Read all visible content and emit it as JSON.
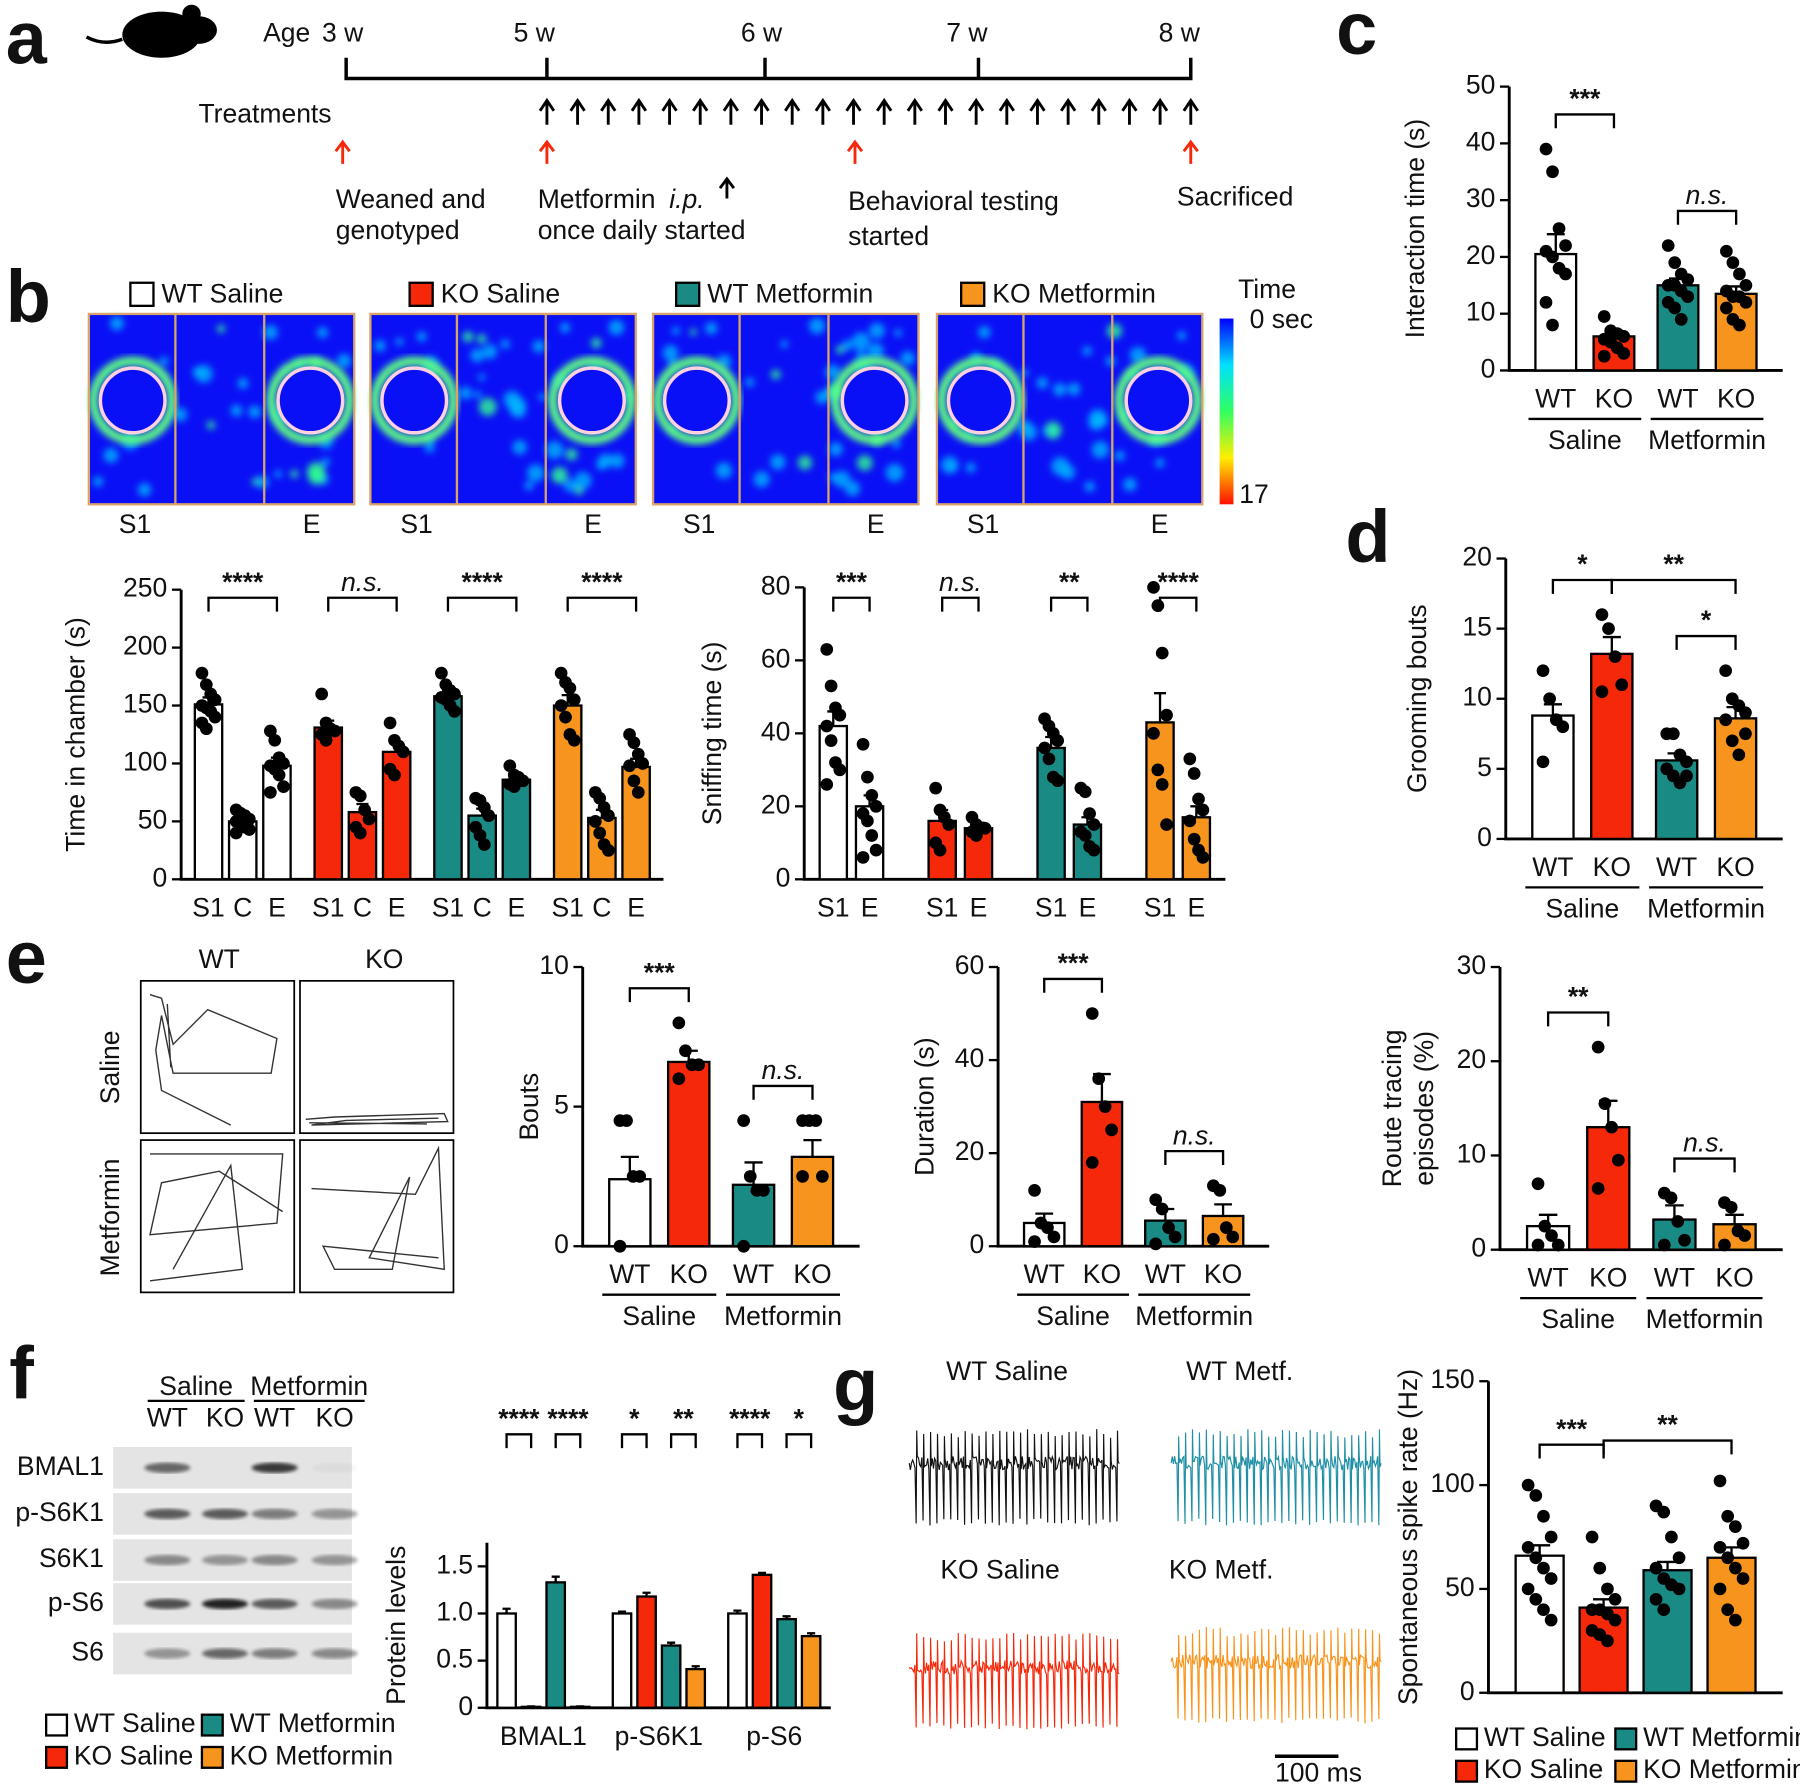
{
  "panel_labels": [
    "a",
    "b",
    "c",
    "d",
    "e",
    "f",
    "g"
  ],
  "timeline": {
    "age_label": "Age",
    "ages": [
      "3 w",
      "5 w",
      "6 w",
      "7 w",
      "8 w"
    ],
    "treatments_label": "Treatments",
    "events": [
      {
        "lines": [
          "Weaned and",
          "genotyped"
        ]
      },
      {
        "lines": [
          "Metformin",
          "once daily started"
        ],
        "note": "i.p."
      },
      {
        "lines": [
          "Behavioral testing",
          "started"
        ]
      },
      {
        "lines": [
          "Sacrificed"
        ]
      }
    ]
  },
  "heatmap": {
    "groups": [
      "WT Saline",
      "KO Saline",
      "WT Metformin",
      "KO Metformin"
    ],
    "colors": [
      "#ffffff",
      "#f5280a",
      "#1a8a84",
      "#f7941d"
    ],
    "chambers": [
      "S1",
      "E"
    ],
    "scale": {
      "title": "Time",
      "ticks": [
        {
          "value": 0,
          "label": "0 sec"
        },
        17
      ]
    }
  },
  "tracks": {
    "columns": [
      "WT",
      "KO"
    ],
    "rows": [
      "Saline",
      "Metformin"
    ]
  },
  "western": {
    "groups": [
      "Saline",
      "Metformin"
    ],
    "lanes": [
      "WT",
      "KO",
      "WT",
      "KO"
    ],
    "proteins": [
      "BMAL1",
      "p-S6K1",
      "S6K1",
      "p-S6",
      "S6"
    ]
  },
  "traces": {
    "labels": [
      "WT Saline",
      "WT Metf.",
      "KO Saline",
      "KO Metf."
    ],
    "colors": [
      "#111111",
      "#1f8fa6",
      "#f5280a",
      "#f7941d"
    ],
    "scale_bar": "100 ms"
  },
  "chart_data": [
    {
      "type": "bar",
      "ylabel": "Time in chamber (s)",
      "ylim": [
        0,
        250
      ],
      "yticks": [
        0,
        50,
        100,
        150,
        200,
        250
      ],
      "groups": [
        {
          "categories": [
            "S1",
            "C",
            "E"
          ]
        },
        {
          "categories": [
            "S1",
            "C",
            "E"
          ]
        },
        {
          "categories": [
            "S1",
            "C",
            "E"
          ]
        },
        {
          "categories": [
            "S1",
            "C",
            "E"
          ]
        }
      ],
      "colors": [
        "#ffffff",
        "#ffffff",
        "#ffffff",
        "#f5280a",
        "#f5280a",
        "#f5280a",
        "#1a8a84",
        "#1a8a84",
        "#1a8a84",
        "#f7941d",
        "#f7941d",
        "#f7941d"
      ],
      "values": [
        151,
        50,
        98,
        131,
        58,
        110,
        158,
        55,
        86,
        150,
        53,
        97
      ],
      "errors": [
        6,
        3,
        7,
        6,
        7,
        7,
        5,
        6,
        4,
        9,
        7,
        7
      ],
      "points": [
        [
          178,
          168,
          160,
          155,
          150,
          148,
          145,
          140,
          135,
          130
        ],
        [
          60,
          57,
          55,
          52,
          50,
          48,
          45,
          43,
          40
        ],
        [
          128,
          120,
          105,
          100,
          98,
          95,
          90,
          80,
          75
        ],
        [
          160,
          135,
          130,
          128,
          125,
          120
        ],
        [
          75,
          72,
          60,
          52,
          45,
          40
        ],
        [
          135,
          120,
          115,
          110,
          95,
          90
        ],
        [
          178,
          168,
          163,
          160,
          157,
          155,
          150,
          145
        ],
        [
          70,
          68,
          62,
          55,
          45,
          38,
          30
        ],
        [
          98,
          90,
          88,
          85,
          82,
          80
        ],
        [
          178,
          170,
          165,
          155,
          150,
          140,
          125,
          120
        ],
        [
          75,
          70,
          62,
          55,
          50,
          40,
          30,
          25
        ],
        [
          125,
          118,
          108,
          100,
          98,
          85,
          75
        ]
      ],
      "annotations": [
        {
          "text": "****",
          "bars": [
            0,
            2
          ]
        },
        {
          "text": "n.s.",
          "bars": [
            3,
            5
          ],
          "style": "italic"
        },
        {
          "text": "****",
          "bars": [
            6,
            8
          ]
        },
        {
          "text": "****",
          "bars": [
            9,
            11
          ]
        }
      ]
    },
    {
      "type": "bar",
      "ylabel": "Sniffing time (s)",
      "ylim": [
        0,
        80
      ],
      "yticks": [
        0,
        20,
        40,
        60,
        80
      ],
      "groups": [
        {
          "categories": [
            "S1",
            "E"
          ]
        },
        {
          "categories": [
            "S1",
            "E"
          ]
        },
        {
          "categories": [
            "S1",
            "E"
          ]
        },
        {
          "categories": [
            "S1",
            "E"
          ]
        }
      ],
      "colors": [
        "#ffffff",
        "#ffffff",
        "#f5280a",
        "#f5280a",
        "#1a8a84",
        "#1a8a84",
        "#f7941d",
        "#f7941d"
      ],
      "values": [
        42,
        20,
        16,
        14,
        36,
        15,
        43,
        17
      ],
      "errors": [
        4,
        3,
        3,
        1.5,
        3,
        2,
        8,
        3
      ],
      "points": [
        [
          63,
          53,
          47,
          45,
          42,
          38,
          32,
          30,
          26
        ],
        [
          37,
          28,
          23,
          20,
          18,
          16,
          12,
          8,
          6
        ],
        [
          25,
          19,
          17,
          15,
          10,
          8
        ],
        [
          17,
          15,
          14,
          14,
          13,
          12
        ],
        [
          44,
          42,
          40,
          38,
          36,
          33,
          28,
          27
        ],
        [
          25,
          24,
          18,
          15,
          13,
          12,
          9,
          8
        ],
        [
          80,
          75,
          62,
          45,
          40,
          30,
          26,
          15
        ],
        [
          33,
          29,
          22,
          19,
          16,
          11,
          8,
          6
        ]
      ],
      "annotations": [
        {
          "text": "***",
          "bars": [
            0,
            1
          ]
        },
        {
          "text": "n.s.",
          "bars": [
            2,
            3
          ],
          "style": "italic"
        },
        {
          "text": "**",
          "bars": [
            4,
            5
          ]
        },
        {
          "text": "****",
          "bars": [
            6,
            7
          ]
        }
      ]
    },
    {
      "type": "bar",
      "ylabel": "Interaction time (s)",
      "ylim": [
        0,
        50
      ],
      "yticks": [
        0,
        10,
        20,
        30,
        40,
        50
      ],
      "groups": [
        {
          "name": "Saline",
          "categories": [
            "WT",
            "KO"
          ]
        },
        {
          "name": "Metformin",
          "categories": [
            "WT",
            "KO"
          ]
        }
      ],
      "colors": [
        "#ffffff",
        "#f5280a",
        "#1a8a84",
        "#f7941d"
      ],
      "values": [
        20.5,
        6,
        15,
        13.5
      ],
      "errors": [
        3.5,
        1,
        1.2,
        1.3
      ],
      "points": [
        [
          39,
          35,
          25,
          22,
          21,
          20,
          18,
          17,
          12,
          8
        ],
        [
          9.5,
          7,
          6.5,
          6,
          5.5,
          5,
          4,
          3,
          2.5
        ],
        [
          22,
          19,
          17,
          16,
          15,
          15,
          14,
          13,
          12,
          11,
          9
        ],
        [
          21,
          19,
          17,
          15,
          14,
          13,
          13,
          12,
          11,
          9,
          8
        ]
      ],
      "annotations": [
        {
          "text": "***",
          "bars": [
            0,
            1
          ]
        },
        {
          "text": "n.s.",
          "bars": [
            2,
            3
          ],
          "style": "italic"
        }
      ]
    },
    {
      "type": "bar",
      "ylabel": "Grooming bouts",
      "ylim": [
        0,
        20
      ],
      "yticks": [
        0,
        5,
        10,
        15,
        20
      ],
      "groups": [
        {
          "name": "Saline",
          "categories": [
            "WT",
            "KO"
          ]
        },
        {
          "name": "Metformin",
          "categories": [
            "WT",
            "KO"
          ]
        }
      ],
      "colors": [
        "#ffffff",
        "#f5280a",
        "#1a8a84",
        "#f7941d"
      ],
      "values": [
        8.8,
        13.2,
        5.6,
        8.6
      ],
      "errors": [
        0.8,
        1.2,
        0.5,
        0.8
      ],
      "points": [
        [
          12,
          10,
          8.5,
          8,
          5.5
        ],
        [
          16,
          15,
          13,
          11,
          10.5
        ],
        [
          7.5,
          7.5,
          6,
          5.5,
          5,
          4.5,
          4,
          4.5
        ],
        [
          12,
          10,
          9.5,
          9,
          8.5,
          7,
          6,
          7.5
        ]
      ],
      "annotations": [
        {
          "text": "*",
          "bars": [
            0,
            1
          ]
        },
        {
          "text": "**",
          "bars": [
            1,
            3
          ]
        },
        {
          "text": "*",
          "bars": [
            2,
            3
          ]
        }
      ]
    },
    {
      "type": "bar",
      "ylabel": "Bouts",
      "ylim": [
        0,
        10
      ],
      "yticks": [
        0,
        5,
        10
      ],
      "groups": [
        {
          "name": "Saline",
          "categories": [
            "WT",
            "KO"
          ]
        },
        {
          "name": "Metformin",
          "categories": [
            "WT",
            "KO"
          ]
        }
      ],
      "colors": [
        "#ffffff",
        "#f5280a",
        "#1a8a84",
        "#f7941d"
      ],
      "values": [
        2.4,
        6.6,
        2.2,
        3.2
      ],
      "errors": [
        0.8,
        0.4,
        0.8,
        0.6
      ],
      "points": [
        [
          4.5,
          4.5,
          2.5,
          2.5,
          0
        ],
        [
          8,
          7,
          6.5,
          6.5,
          6
        ],
        [
          4.5,
          2.5,
          2,
          2,
          0
        ],
        [
          4.5,
          4.5,
          4.5,
          2.5,
          2.5
        ]
      ],
      "annotations": [
        {
          "text": "***",
          "bars": [
            0,
            1
          ]
        },
        {
          "text": "n.s.",
          "bars": [
            2,
            3
          ],
          "style": "italic"
        }
      ]
    },
    {
      "type": "bar",
      "ylabel": "Duration (s)",
      "ylim": [
        0,
        60
      ],
      "yticks": [
        0,
        20,
        40,
        60
      ],
      "groups": [
        {
          "name": "Saline",
          "categories": [
            "WT",
            "KO"
          ]
        },
        {
          "name": "Metformin",
          "categories": [
            "WT",
            "KO"
          ]
        }
      ],
      "colors": [
        "#ffffff",
        "#f5280a",
        "#1a8a84",
        "#f7941d"
      ],
      "values": [
        5,
        31,
        5.5,
        6.5
      ],
      "errors": [
        2,
        6,
        2.5,
        2.5
      ],
      "points": [
        [
          12,
          5,
          4,
          2,
          1
        ],
        [
          50,
          36,
          30,
          25,
          18
        ],
        [
          10,
          8,
          4,
          2,
          0.5
        ],
        [
          13,
          12,
          4,
          2,
          1.5
        ]
      ],
      "annotations": [
        {
          "text": "***",
          "bars": [
            0,
            1
          ]
        },
        {
          "text": "n.s.",
          "bars": [
            2,
            3
          ],
          "style": "italic"
        }
      ]
    },
    {
      "type": "bar",
      "ylabel": [
        "Route tracing",
        "episodes (%)"
      ],
      "ylim": [
        0,
        30
      ],
      "yticks": [
        0,
        10,
        20,
        30
      ],
      "groups": [
        {
          "name": "Saline",
          "categories": [
            "WT",
            "KO"
          ]
        },
        {
          "name": "Metformin",
          "categories": [
            "WT",
            "KO"
          ]
        }
      ],
      "colors": [
        "#ffffff",
        "#f5280a",
        "#1a8a84",
        "#f7941d"
      ],
      "values": [
        2.5,
        13,
        3.2,
        2.7
      ],
      "errors": [
        1.2,
        2.8,
        1.5,
        1
      ],
      "points": [
        [
          7,
          2.5,
          1.5,
          0.5,
          0.5
        ],
        [
          21.5,
          15.5,
          13,
          9.5,
          6.5
        ],
        [
          6,
          5.5,
          3,
          1,
          0.5
        ],
        [
          5,
          4.5,
          2,
          1.5,
          0.5
        ]
      ],
      "annotations": [
        {
          "text": "**",
          "bars": [
            0,
            1
          ]
        },
        {
          "text": "n.s.",
          "bars": [
            2,
            3
          ],
          "style": "italic"
        }
      ]
    },
    {
      "type": "bar",
      "ylabel": "Protein levels",
      "ylim": [
        0,
        1.75
      ],
      "yticks": [
        0,
        0.5,
        {
          "value": 1,
          "label": "1.0"
        },
        1.5
      ],
      "categories": [
        "BMAL1",
        "p-S6K1",
        "p-S6"
      ],
      "series": [
        {
          "name": "WT Saline",
          "color": "#ffffff",
          "values": [
            1,
            1,
            1
          ],
          "errors": [
            0.05,
            0.02,
            0.03
          ]
        },
        {
          "name": "KO  Saline",
          "color": "#f5280a",
          "values": [
            0.01,
            1.18,
            1.41
          ],
          "errors": [
            0.005,
            0.04,
            0.02
          ]
        },
        {
          "name": "WT Metformin",
          "color": "#1a8a84",
          "values": [
            1.33,
            0.66,
            0.94
          ],
          "errors": [
            0.06,
            0.03,
            0.03
          ]
        },
        {
          "name": "KO  Metformin",
          "color": "#f7941d",
          "values": [
            0.01,
            0.41,
            0.76
          ],
          "errors": [
            0.005,
            0.03,
            0.03
          ]
        }
      ],
      "annotations": [
        {
          "text": "****",
          "bars": [
            0,
            1
          ]
        },
        {
          "text": "****",
          "bars": [
            2,
            3
          ]
        },
        {
          "text": "*",
          "bars": [
            4,
            5
          ]
        },
        {
          "text": "**",
          "bars": [
            6,
            7
          ]
        },
        {
          "text": "****",
          "bars": [
            8,
            9
          ]
        },
        {
          "text": "*",
          "bars": [
            10,
            11
          ]
        }
      ]
    },
    {
      "type": "bar",
      "ylabel": "Spontaneous spike rate (Hz)",
      "ylim": [
        0,
        150
      ],
      "yticks": [
        0,
        50,
        100,
        150
      ],
      "categories": [
        null
      ],
      "series": [
        {
          "name": "WT Saline",
          "color": "#ffffff",
          "values": [
            66
          ],
          "errors": [
            5
          ],
          "points": [
            [
              100,
              95,
              85,
              75,
              70,
              65,
              60,
              55,
              50,
              45,
              40,
              35
            ]
          ]
        },
        {
          "name": "KO  Saline",
          "color": "#f5280a",
          "values": [
            41
          ],
          "errors": [
            4
          ],
          "points": [
            [
              75,
              60,
              50,
              45,
              40,
              40,
              38,
              35,
              30,
              28,
              25
            ]
          ]
        },
        {
          "name": "WT Metformin",
          "color": "#1a8a84",
          "values": [
            59
          ],
          "errors": [
            4
          ],
          "points": [
            [
              90,
              87,
              75,
              65,
              60,
              55,
              52,
              50,
              45,
              40
            ]
          ]
        },
        {
          "name": "KO  Metformin",
          "color": "#f7941d",
          "values": [
            65
          ],
          "errors": [
            5
          ],
          "points": [
            [
              102,
              85,
              80,
              72,
              70,
              65,
              60,
              55,
              50,
              40,
              35
            ]
          ]
        }
      ],
      "annotations": [
        {
          "text": "***",
          "bars": [
            0,
            1
          ]
        },
        {
          "text": "**",
          "bars": [
            1,
            3
          ]
        }
      ]
    }
  ]
}
